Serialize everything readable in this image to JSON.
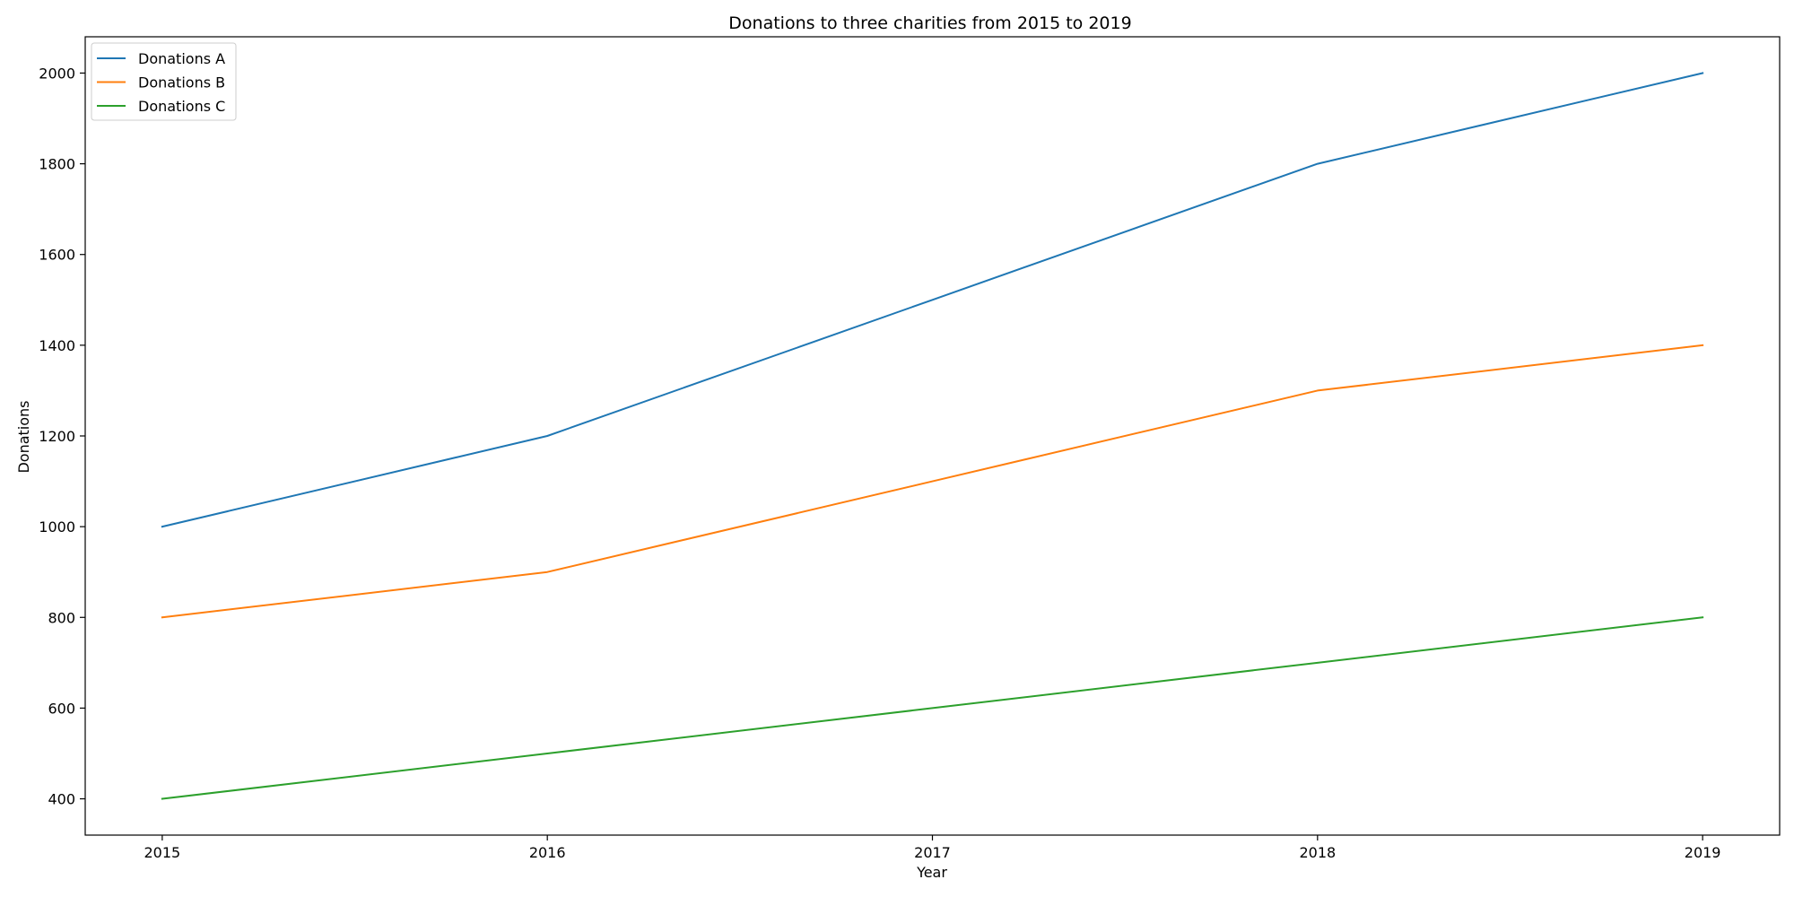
{
  "chart_data": {
    "type": "line",
    "title": "Donations to three charities from 2015 to 2019",
    "xlabel": "Year",
    "ylabel": "Donations",
    "x": [
      2015,
      2016,
      2017,
      2018,
      2019
    ],
    "x_ticks": [
      "2015",
      "2016",
      "2017",
      "2018",
      "2019"
    ],
    "xlim": [
      2014.8,
      2019.2
    ],
    "ylim": [
      320,
      2080
    ],
    "y_ticks": [
      400,
      600,
      800,
      1000,
      1200,
      1400,
      1600,
      1800,
      2000
    ],
    "grid": false,
    "legend_position": "top-left",
    "series": [
      {
        "name": "Donations A",
        "color": "#1f77b4",
        "values": [
          1000,
          1200,
          1500,
          1800,
          2000
        ]
      },
      {
        "name": "Donations B",
        "color": "#ff7f0e",
        "values": [
          800,
          900,
          1100,
          1300,
          1400
        ]
      },
      {
        "name": "Donations C",
        "color": "#2ca02c",
        "values": [
          400,
          500,
          600,
          700,
          800
        ]
      }
    ]
  }
}
